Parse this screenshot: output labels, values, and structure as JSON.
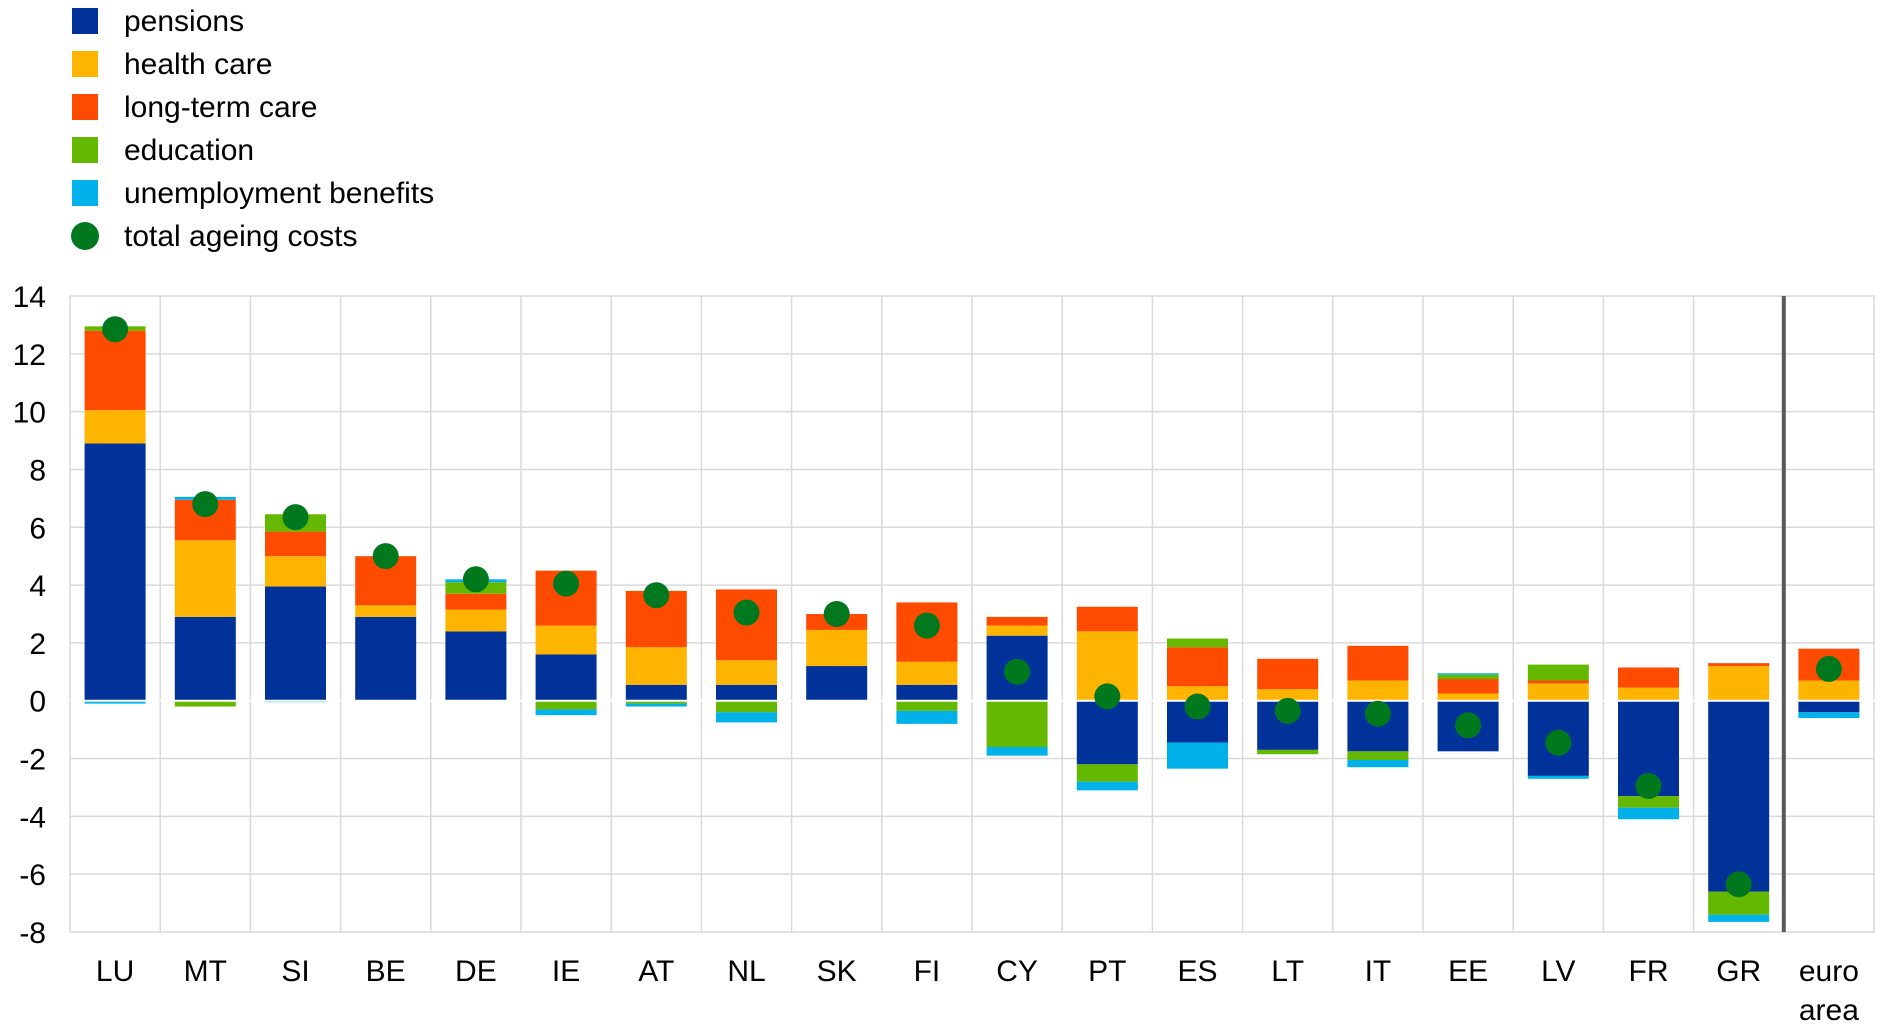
{
  "chart_data": {
    "type": "bar",
    "stacked": true,
    "title": "",
    "xlabel": "",
    "ylabel": "",
    "ylim": [
      -8,
      14
    ],
    "yticks": [
      14,
      12,
      10,
      8,
      6,
      4,
      2,
      0,
      -2,
      -4,
      -6,
      -8
    ],
    "grid": true,
    "legend_position": "top-left",
    "categories": [
      [
        "LU"
      ],
      [
        "MT"
      ],
      [
        "SI"
      ],
      [
        "BE"
      ],
      [
        "DE"
      ],
      [
        "IE"
      ],
      [
        "AT"
      ],
      [
        "NL"
      ],
      [
        "SK"
      ],
      [
        "FI"
      ],
      [
        "CY"
      ],
      [
        "PT"
      ],
      [
        "ES"
      ],
      [
        "LT"
      ],
      [
        "IT"
      ],
      [
        "EE"
      ],
      [
        "LV"
      ],
      [
        "FR"
      ],
      [
        "GR"
      ],
      [
        "euro",
        "area"
      ]
    ],
    "series": [
      {
        "name": "pensions",
        "color": "#003299",
        "values": [
          8.9,
          2.9,
          3.95,
          2.9,
          2.4,
          1.6,
          0.55,
          0.55,
          1.2,
          0.55,
          2.25,
          -2.2,
          -1.45,
          -1.7,
          -1.75,
          -1.75,
          -2.6,
          -3.3,
          -6.6,
          -0.4
        ]
      },
      {
        "name": "health care",
        "color": "#FFB400",
        "values": [
          1.15,
          2.65,
          1.05,
          0.4,
          0.75,
          1.0,
          1.3,
          0.85,
          1.25,
          0.8,
          0.35,
          2.4,
          0.5,
          0.4,
          0.7,
          0.25,
          0.6,
          0.45,
          1.2,
          0.7
        ]
      },
      {
        "name": "long-term care",
        "color": "#FF4B00",
        "values": [
          2.75,
          1.4,
          0.85,
          1.7,
          0.55,
          1.9,
          1.95,
          2.45,
          0.55,
          2.05,
          0.3,
          0.85,
          1.35,
          1.05,
          1.2,
          0.5,
          0.1,
          0.7,
          0.1,
          1.1
        ]
      },
      {
        "name": "education",
        "color": "#65B800",
        "values": [
          0.15,
          -0.2,
          0.6,
          0.0,
          0.4,
          -0.3,
          -0.1,
          -0.4,
          0.0,
          -0.35,
          -1.6,
          -0.6,
          0.3,
          -0.15,
          -0.3,
          0.15,
          0.55,
          -0.4,
          -0.8,
          0.0
        ]
      },
      {
        "name": "unemployment benefits",
        "color": "#00B1EA",
        "values": [
          -0.1,
          0.1,
          -0.05,
          0.0,
          0.1,
          -0.2,
          -0.1,
          -0.35,
          0.0,
          -0.45,
          -0.3,
          -0.3,
          -0.9,
          0.0,
          -0.25,
          0.05,
          -0.1,
          -0.4,
          -0.25,
          -0.2
        ]
      }
    ],
    "total": {
      "name": "total ageing costs",
      "color": "#00781E",
      "values": [
        12.85,
        6.8,
        6.35,
        5.0,
        4.2,
        4.05,
        3.65,
        3.05,
        3.0,
        2.6,
        1.0,
        0.15,
        -0.2,
        -0.35,
        -0.45,
        -0.85,
        -1.45,
        -2.95,
        -6.35,
        1.1
      ]
    }
  }
}
